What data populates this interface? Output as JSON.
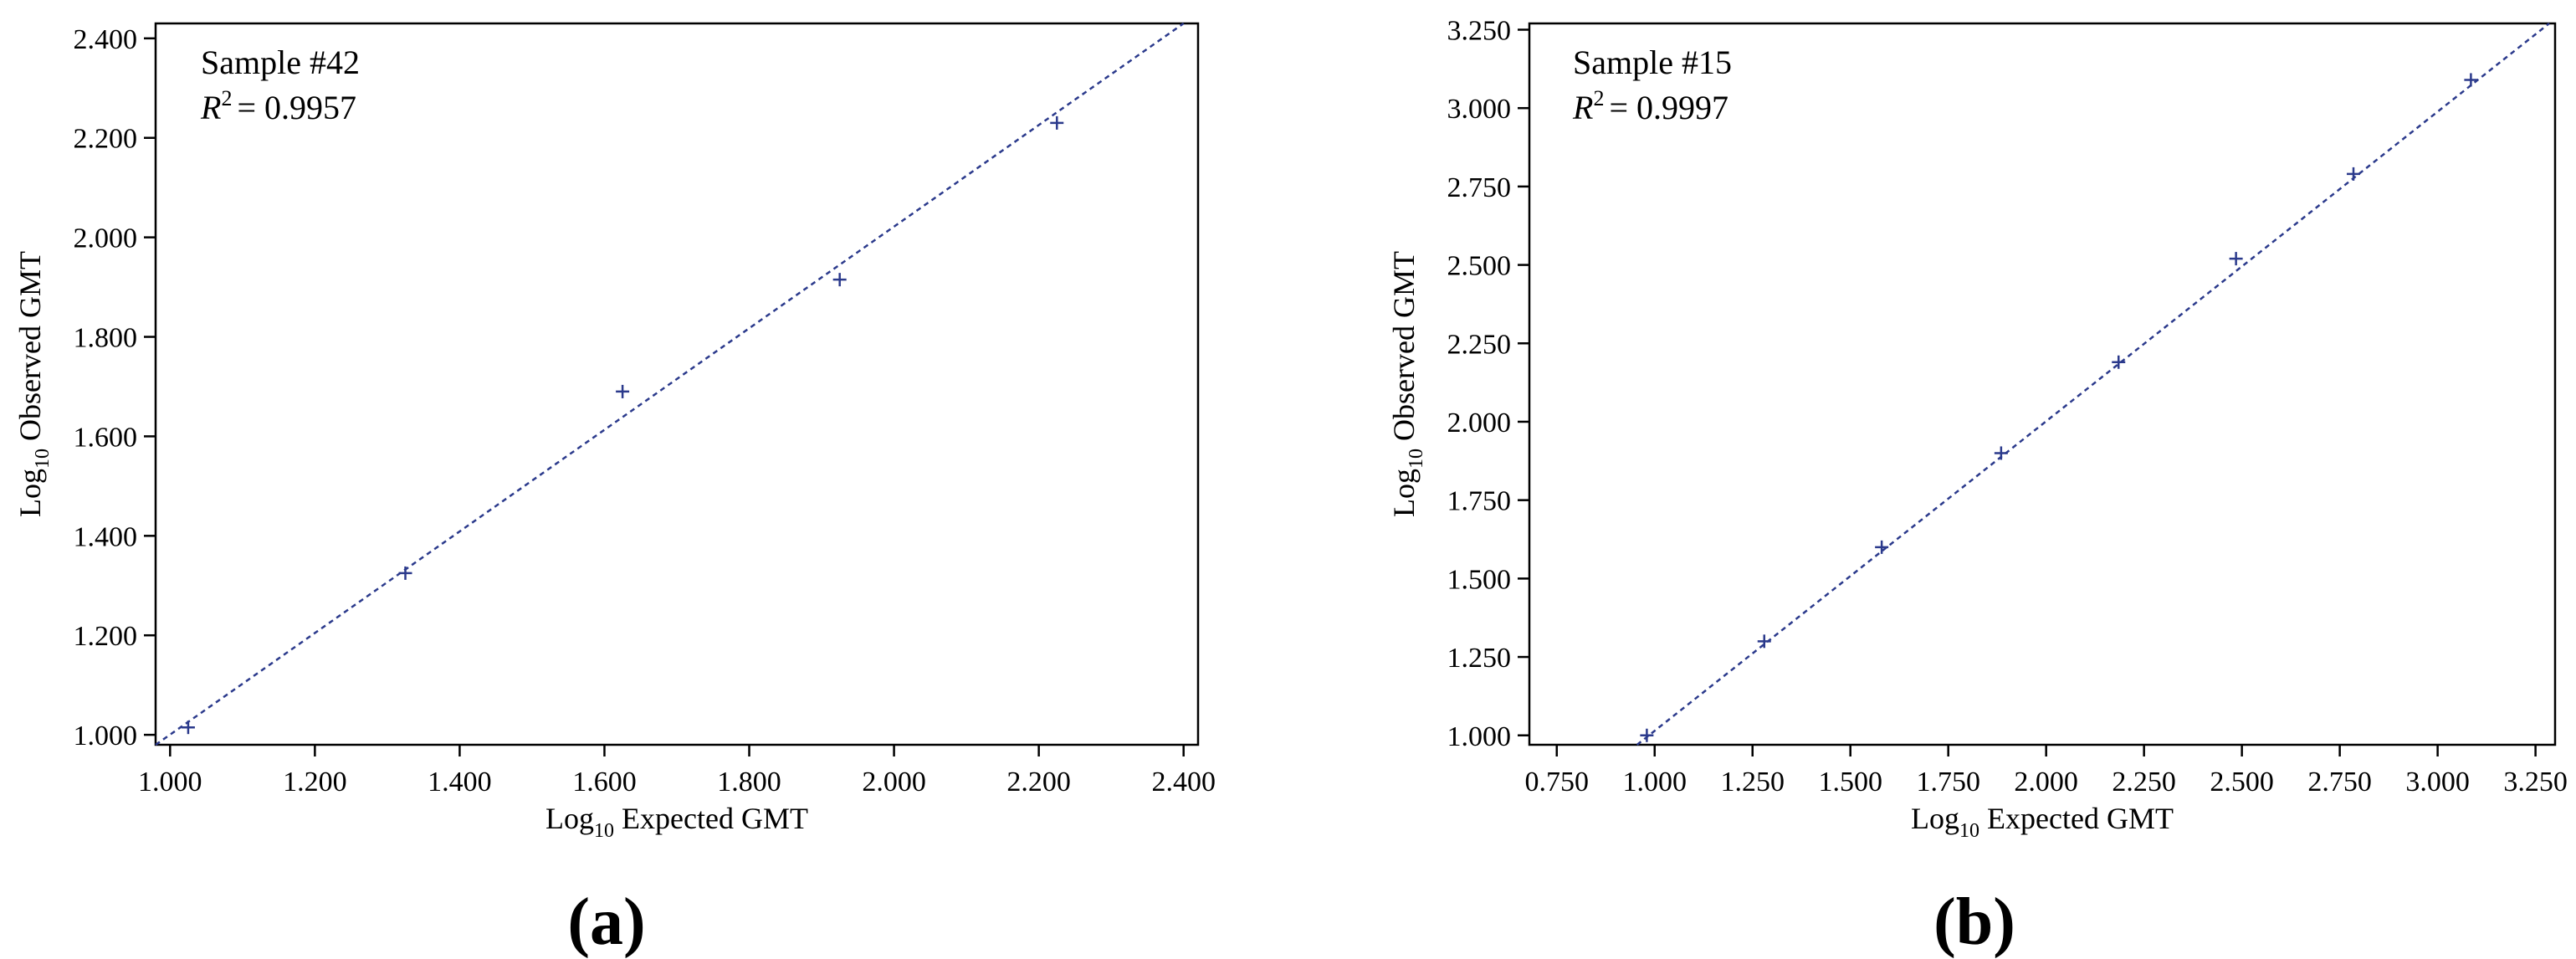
{
  "chart_data": [
    {
      "type": "scatter",
      "panel_label": "(a)",
      "annotation": {
        "sample": "Sample #42",
        "r2_symbol": "R",
        "r2_exponent": "2",
        "r2_value": "= 0.9957"
      },
      "xlabel": {
        "prefix": "Log",
        "subscript": "10",
        "text": " Expected GMT"
      },
      "ylabel": {
        "prefix": "Log",
        "subscript": "10",
        "text": " Observed GMT"
      },
      "xlim": [
        0.98,
        2.42
      ],
      "ylim": [
        0.98,
        2.43
      ],
      "xticks": [
        1.0,
        1.2,
        1.4,
        1.6,
        1.8,
        2.0,
        2.2,
        2.4
      ],
      "xtick_labels": [
        "1.000",
        "1.200",
        "1.400",
        "1.600",
        "1.800",
        "2.000",
        "2.200",
        "2.400"
      ],
      "yticks": [
        1.0,
        1.2,
        1.4,
        1.6,
        1.8,
        2.0,
        2.2,
        2.4
      ],
      "ytick_labels": [
        "1.000",
        "1.200",
        "1.400",
        "1.600",
        "1.800",
        "2.000",
        "2.200",
        "2.400"
      ],
      "points": [
        {
          "x": 1.025,
          "y": 1.015
        },
        {
          "x": 1.325,
          "y": 1.325
        },
        {
          "x": 1.625,
          "y": 1.69
        },
        {
          "x": 1.925,
          "y": 1.915
        },
        {
          "x": 2.225,
          "y": 2.23
        }
      ],
      "fit_line": {
        "x": [
          0.98,
          2.4
        ],
        "y": [
          0.98,
          2.43
        ]
      },
      "marker_color": "#2b3a8c",
      "line_color": "#2b3a8c",
      "grid": false
    },
    {
      "type": "scatter",
      "panel_label": "(b)",
      "annotation": {
        "sample": "Sample #15",
        "r2_symbol": "R",
        "r2_exponent": "2",
        "r2_value": "= 0.9997"
      },
      "xlabel": {
        "prefix": "Log",
        "subscript": "10",
        "text": " Expected GMT"
      },
      "ylabel": {
        "prefix": "Log",
        "subscript": "10",
        "text": " Observed GMT"
      },
      "xlim": [
        0.68,
        3.3
      ],
      "ylim": [
        0.97,
        3.27
      ],
      "xticks": [
        0.75,
        1.0,
        1.25,
        1.5,
        1.75,
        2.0,
        2.25,
        2.5,
        2.75,
        3.0,
        3.25
      ],
      "xtick_labels": [
        "0.750",
        "1.000",
        "1.250",
        "1.500",
        "1.750",
        "2.000",
        "2.250",
        "2.500",
        "2.750",
        "3.000",
        "3.250"
      ],
      "yticks": [
        1.0,
        1.25,
        1.5,
        1.75,
        2.0,
        2.25,
        2.5,
        2.75,
        3.0,
        3.25
      ],
      "ytick_labels": [
        "1.000",
        "1.250",
        "1.500",
        "1.750",
        "2.000",
        "2.250",
        "2.500",
        "2.750",
        "3.000",
        "3.250"
      ],
      "points": [
        {
          "x": 0.98,
          "y": 1.0
        },
        {
          "x": 1.28,
          "y": 1.3
        },
        {
          "x": 1.58,
          "y": 1.6
        },
        {
          "x": 1.885,
          "y": 1.9
        },
        {
          "x": 2.185,
          "y": 2.19
        },
        {
          "x": 2.485,
          "y": 2.52
        },
        {
          "x": 2.785,
          "y": 2.79
        },
        {
          "x": 3.085,
          "y": 3.09
        }
      ],
      "fit_line": {
        "x": [
          0.955,
          3.285
        ],
        "y": [
          0.97,
          3.27
        ]
      },
      "marker_color": "#2b3a8c",
      "line_color": "#2b3a8c",
      "grid": false
    }
  ]
}
